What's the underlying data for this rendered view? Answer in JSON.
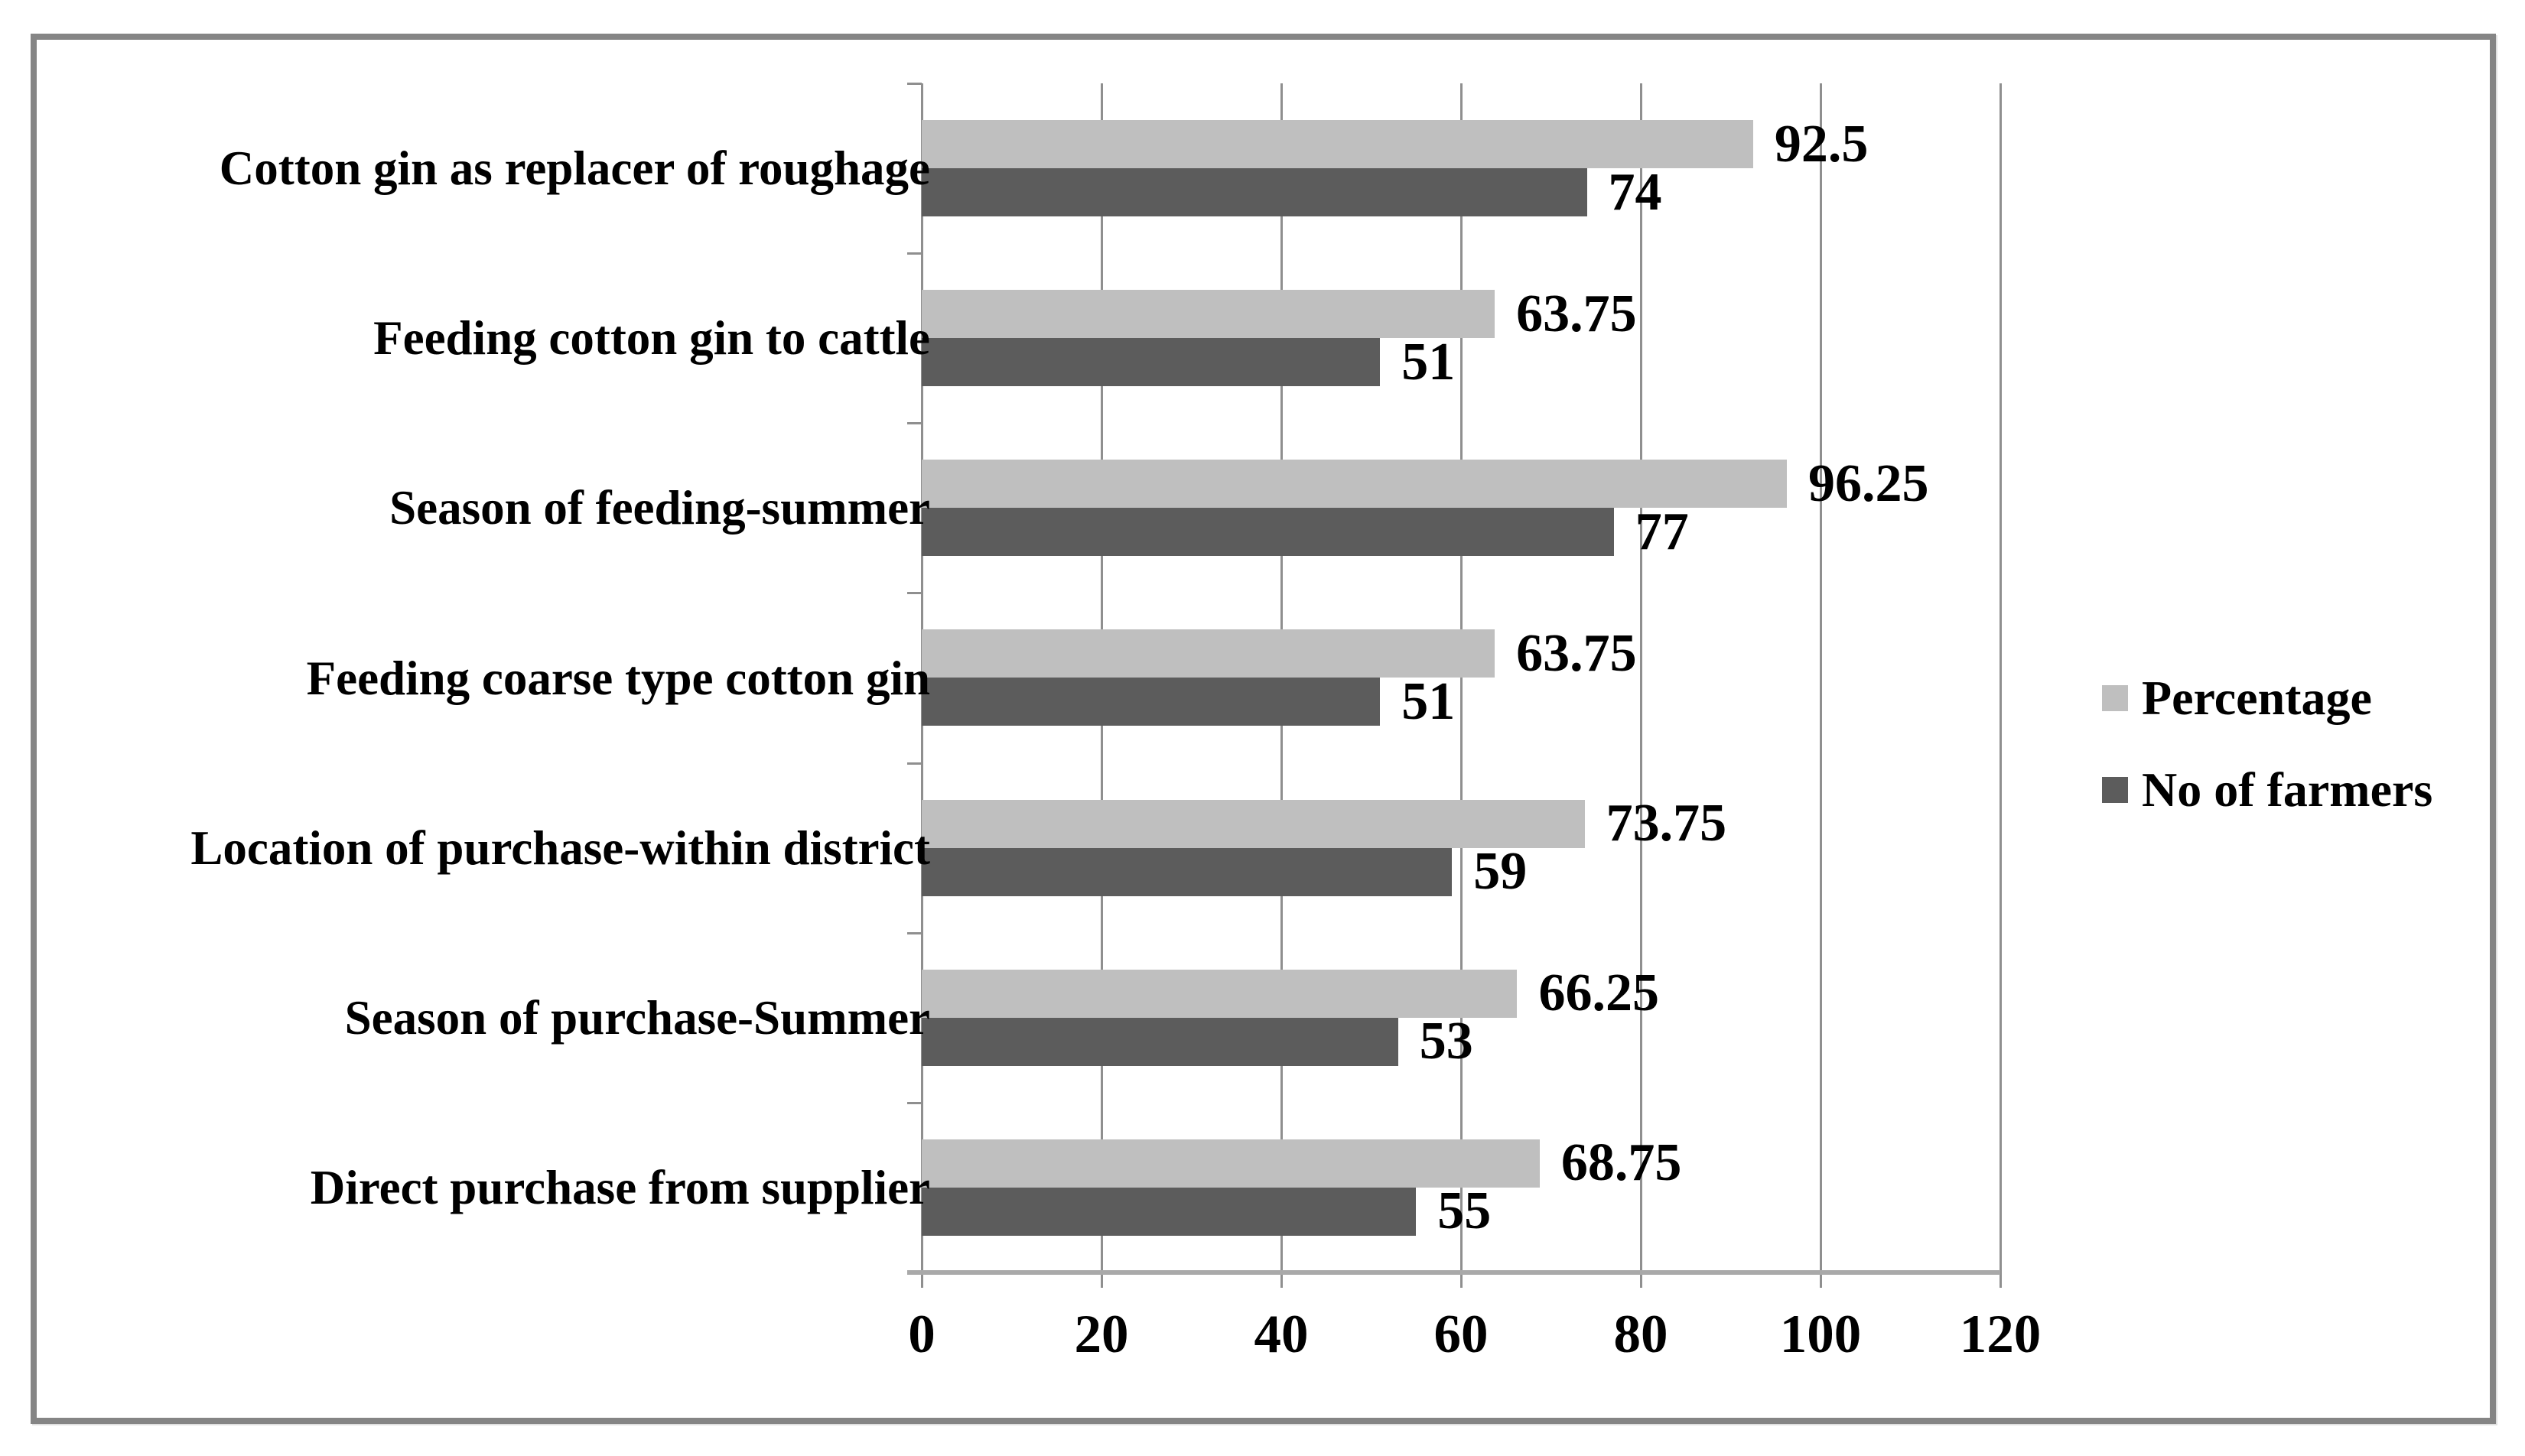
{
  "figure": {
    "background": "#ffffff",
    "frame_border_color": "#858585",
    "gridline_color": "#8f8f8f",
    "axis_line_color": "#a9a9a9"
  },
  "chart_data": {
    "type": "bar",
    "orientation": "horizontal",
    "title": "",
    "xlabel": "",
    "ylabel": "",
    "xlim": [
      0,
      120
    ],
    "x_ticks": [
      "0",
      "20",
      "40",
      "60",
      "80",
      "100",
      "120"
    ],
    "grid": true,
    "legend_position": "right",
    "categories": [
      "Cotton gin as replacer of roughage",
      "Feeding cotton gin to cattle",
      "Season of feeding-summer",
      "Feeding coarse type cotton gin",
      "Location of purchase-within district",
      "Season of purchase-Summer",
      "Direct purchase from supplier"
    ],
    "series": [
      {
        "name": "Percentage",
        "color": "#bfbfbf",
        "values": [
          92.5,
          63.75,
          96.25,
          63.75,
          73.75,
          66.25,
          68.75
        ]
      },
      {
        "name": "No of farmers",
        "color": "#5c5c5c",
        "values": [
          74,
          51,
          77,
          51,
          59,
          53,
          55
        ]
      }
    ]
  }
}
